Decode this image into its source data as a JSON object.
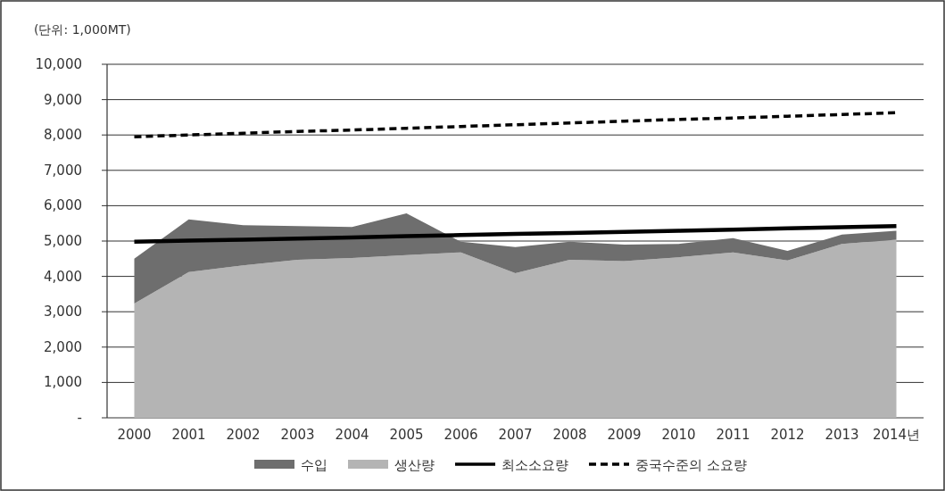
{
  "chart_data": {
    "type": "area",
    "stacked": true,
    "annotations": [
      "(단위: 1,000MT)"
    ],
    "categories": [
      "2000",
      "2001",
      "2002",
      "2003",
      "2004",
      "2005",
      "2006",
      "2007",
      "2008",
      "2009",
      "2010",
      "2011",
      "2012",
      "2013",
      "2014년"
    ],
    "series": [
      {
        "name": "생산량",
        "color": "#b4b4b4",
        "values": [
          3230,
          4120,
          4310,
          4470,
          4520,
          4600,
          4680,
          4090,
          4470,
          4430,
          4540,
          4680,
          4450,
          4920,
          5040
        ]
      },
      {
        "name": "수입",
        "color": "#6e6e6e",
        "values": [
          1270,
          1490,
          1140,
          950,
          880,
          1180,
          300,
          740,
          510,
          470,
          380,
          400,
          270,
          260,
          250
        ]
      },
      {
        "name": "최소소요량",
        "type": "line",
        "color": "#000000",
        "line_style": "solid",
        "values": [
          4980,
          5010,
          5040,
          5070,
          5100,
          5140,
          5170,
          5200,
          5230,
          5260,
          5290,
          5320,
          5360,
          5390,
          5420
        ]
      },
      {
        "name": "중국수준의 소요량",
        "type": "line",
        "color": "#000000",
        "line_style": "dashed",
        "values": [
          7950,
          8000,
          8050,
          8100,
          8140,
          8190,
          8240,
          8290,
          8340,
          8390,
          8440,
          8480,
          8530,
          8580,
          8630
        ]
      }
    ],
    "ylim": [
      0,
      10000
    ],
    "yticks": [
      {
        "value": 0,
        "label": "-"
      },
      {
        "value": 1000,
        "label": "1,000"
      },
      {
        "value": 2000,
        "label": "2,000"
      },
      {
        "value": 3000,
        "label": "3,000"
      },
      {
        "value": 4000,
        "label": "4,000"
      },
      {
        "value": 5000,
        "label": "5,000"
      },
      {
        "value": 6000,
        "label": "6,000"
      },
      {
        "value": 7000,
        "label": "7,000"
      },
      {
        "value": 8000,
        "label": "8,000"
      },
      {
        "value": 9000,
        "label": "9,000"
      },
      {
        "value": 10000,
        "label": "10,000"
      }
    ],
    "grid": "y",
    "legend": "bottom",
    "marker": "none"
  }
}
